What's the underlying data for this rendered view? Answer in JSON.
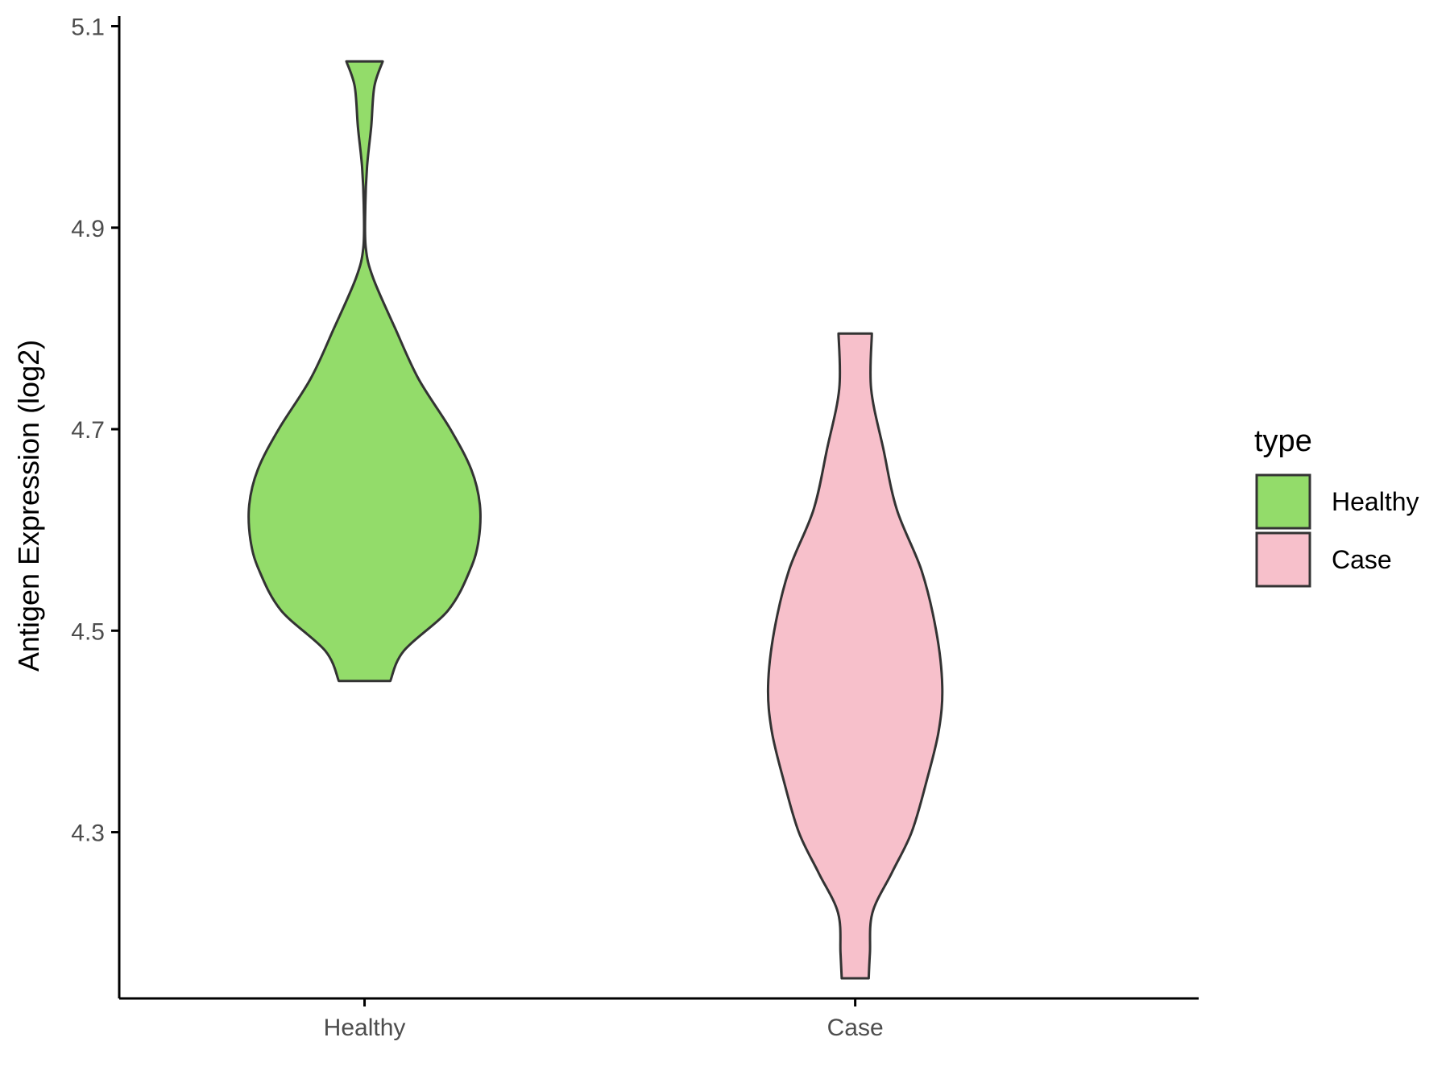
{
  "chart_data": {
    "type": "violin",
    "title": "",
    "xlabel": "",
    "ylabel": "Antigen Expression (log2)",
    "ylim": [
      4.135,
      5.11
    ],
    "y_ticks": [
      "4.3",
      "4.5",
      "4.7",
      "4.9",
      "5.1"
    ],
    "y_tick_values": [
      4.3,
      4.5,
      4.7,
      4.9,
      5.1
    ],
    "categories": [
      "Healthy",
      "Case"
    ],
    "grid": false,
    "legend": {
      "title": "type",
      "position": "right",
      "entries": [
        {
          "label": "Healthy",
          "color": "#93DC6A"
        },
        {
          "label": "Case",
          "color": "#F7C0CB"
        }
      ]
    },
    "series": [
      {
        "category": "Healthy",
        "color": "#93DC6A",
        "min": 4.45,
        "max": 5.065,
        "density_profile": [
          {
            "y": 4.45,
            "halfwidth": 0.105
          },
          {
            "y": 4.48,
            "halfwidth": 0.16
          },
          {
            "y": 4.52,
            "halfwidth": 0.34
          },
          {
            "y": 4.56,
            "halfwidth": 0.43
          },
          {
            "y": 4.59,
            "halfwidth": 0.465
          },
          {
            "y": 4.625,
            "halfwidth": 0.47
          },
          {
            "y": 4.66,
            "halfwidth": 0.435
          },
          {
            "y": 4.7,
            "halfwidth": 0.35
          },
          {
            "y": 4.75,
            "halfwidth": 0.22
          },
          {
            "y": 4.8,
            "halfwidth": 0.125
          },
          {
            "y": 4.85,
            "halfwidth": 0.035
          },
          {
            "y": 4.88,
            "halfwidth": 0.005
          },
          {
            "y": 4.92,
            "halfwidth": 0.003
          },
          {
            "y": 4.96,
            "halfwidth": 0.01
          },
          {
            "y": 5.0,
            "halfwidth": 0.027
          },
          {
            "y": 5.04,
            "halfwidth": 0.04
          },
          {
            "y": 5.065,
            "halfwidth": 0.074
          }
        ]
      },
      {
        "category": "Case",
        "color": "#F7C0CB",
        "min": 4.155,
        "max": 4.795,
        "density_profile": [
          {
            "y": 4.155,
            "halfwidth": 0.055
          },
          {
            "y": 4.18,
            "halfwidth": 0.06
          },
          {
            "y": 4.22,
            "halfwidth": 0.07
          },
          {
            "y": 4.26,
            "halfwidth": 0.15
          },
          {
            "y": 4.3,
            "halfwidth": 0.23
          },
          {
            "y": 4.35,
            "halfwidth": 0.29
          },
          {
            "y": 4.4,
            "halfwidth": 0.34
          },
          {
            "y": 4.445,
            "halfwidth": 0.355
          },
          {
            "y": 4.5,
            "halfwidth": 0.33
          },
          {
            "y": 4.56,
            "halfwidth": 0.27
          },
          {
            "y": 4.62,
            "halfwidth": 0.17
          },
          {
            "y": 4.68,
            "halfwidth": 0.115
          },
          {
            "y": 4.74,
            "halfwidth": 0.065
          },
          {
            "y": 4.795,
            "halfwidth": 0.068
          }
        ]
      }
    ]
  }
}
